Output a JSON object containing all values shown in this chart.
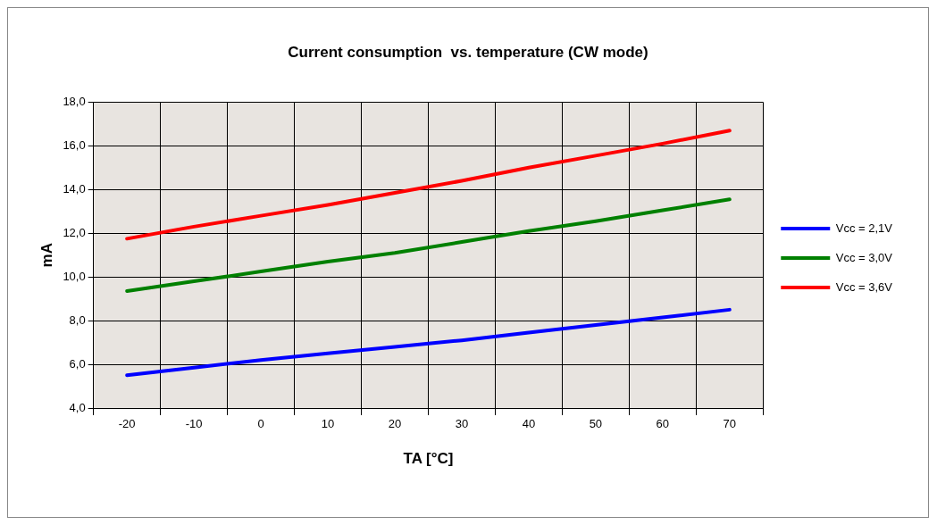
{
  "chart_data": {
    "type": "line",
    "title": "Current consumption  vs. temperature (CW mode)",
    "xlabel": "TA [°C]",
    "ylabel": "mA",
    "categories": [
      "-20",
      "-10",
      "0",
      "10",
      "20",
      "30",
      "40",
      "50",
      "60",
      "70"
    ],
    "series": [
      {
        "name": "Vcc = 2,1V",
        "color": "#0000ff",
        "values": [
          5.5,
          5.85,
          6.2,
          6.5,
          6.8,
          7.1,
          7.45,
          7.8,
          8.15,
          8.5
        ]
      },
      {
        "name": "Vcc = 3,0V",
        "color": "#008000",
        "values": [
          9.35,
          9.8,
          10.25,
          10.7,
          11.1,
          11.6,
          12.1,
          12.55,
          13.05,
          13.55
        ]
      },
      {
        "name": "Vcc = 3,6V",
        "color": "#ff0000",
        "values": [
          11.75,
          12.3,
          12.8,
          13.3,
          13.85,
          14.4,
          15.0,
          15.55,
          16.1,
          16.7
        ]
      }
    ],
    "ylim": [
      4,
      18
    ],
    "yticks": [
      {
        "value": 4,
        "label": "4,0"
      },
      {
        "value": 6,
        "label": "6,0"
      },
      {
        "value": 8,
        "label": "8,0"
      },
      {
        "value": 10,
        "label": "10,0"
      },
      {
        "value": 12,
        "label": "12,0"
      },
      {
        "value": 14,
        "label": "14,0"
      },
      {
        "value": 16,
        "label": "16,0"
      },
      {
        "value": 18,
        "label": "18,0"
      }
    ],
    "grid": true,
    "legend": "right",
    "marker": "none",
    "line_style": "solid"
  }
}
